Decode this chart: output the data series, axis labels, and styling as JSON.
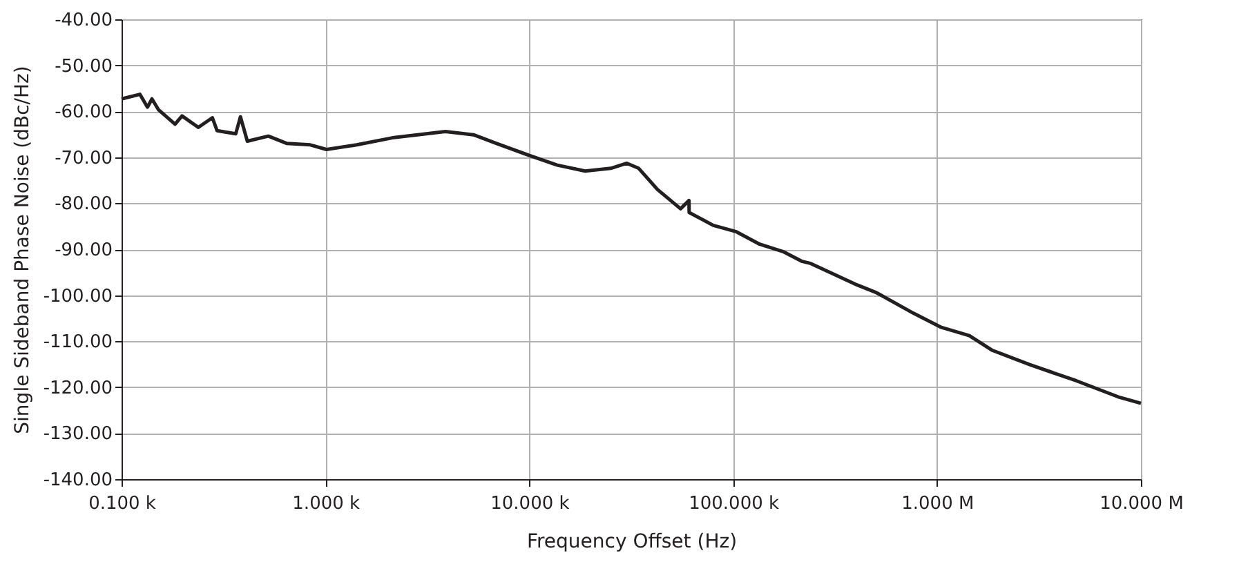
{
  "chart_data": {
    "type": "line",
    "xlabel": "Frequency Offset (Hz)",
    "ylabel": "Single Sideband Phase Noise (dBc/Hz)",
    "log": "x",
    "grid": true,
    "marker": "none",
    "line_style": "solid",
    "xlim": [
      100,
      10000000
    ],
    "ylim": [
      -140,
      -40
    ],
    "xticks": [
      {
        "value": 100,
        "label": "0.100 k"
      },
      {
        "value": 1000,
        "label": "1.000 k"
      },
      {
        "value": 10000,
        "label": "10.000 k"
      },
      {
        "value": 100000,
        "label": "100.000 k"
      },
      {
        "value": 1000000,
        "label": "1.000 M"
      },
      {
        "value": 10000000,
        "label": "10.000 M"
      }
    ],
    "yticks": [
      {
        "value": -40,
        "label": "-40.00"
      },
      {
        "value": -50,
        "label": "-50.00"
      },
      {
        "value": -60,
        "label": "-60.00"
      },
      {
        "value": -70,
        "label": "-70.00"
      },
      {
        "value": -80,
        "label": "-80.00"
      },
      {
        "value": -90,
        "label": "-90.00"
      },
      {
        "value": -100,
        "label": "-100.00"
      },
      {
        "value": -110,
        "label": "-110.00"
      },
      {
        "value": -120,
        "label": "-120.00"
      },
      {
        "value": -130,
        "label": "-130.00"
      },
      {
        "value": -140,
        "label": "-140.00"
      }
    ],
    "series": [
      {
        "color": "#231f20",
        "x": [
          100,
          123,
          134,
          141,
          152,
          183,
          198,
          238,
          279,
          294,
          363,
          383,
          414,
          525,
          648,
          843,
          1012,
          1425,
          2172,
          3878,
          5322,
          6918,
          10000,
          13700,
          18800,
          25100,
          30100,
          34400,
          42500,
          55200,
          60700,
          60800,
          79800,
          103700,
          134900,
          175400,
          216600,
          240300,
          407000,
          502000,
          765000,
          1050000,
          1440000,
          1870000,
          2850000,
          4820000,
          7730000,
          10000000
        ],
        "values": [
          -57.3,
          -56.3,
          -59.1,
          -57.3,
          -59.7,
          -62.8,
          -61.0,
          -63.5,
          -61.4,
          -64.2,
          -64.9,
          -61.2,
          -66.5,
          -65.4,
          -67.0,
          -67.3,
          -68.3,
          -67.3,
          -65.7,
          -64.4,
          -65.1,
          -67.0,
          -69.6,
          -71.7,
          -73.0,
          -72.4,
          -71.3,
          -72.4,
          -77.0,
          -81.2,
          -79.4,
          -82.0,
          -84.8,
          -86.2,
          -88.9,
          -90.5,
          -92.6,
          -93.1,
          -97.8,
          -99.4,
          -103.9,
          -107.0,
          -108.8,
          -112.0,
          -115.1,
          -118.6,
          -122.1,
          -123.5
        ]
      }
    ]
  }
}
